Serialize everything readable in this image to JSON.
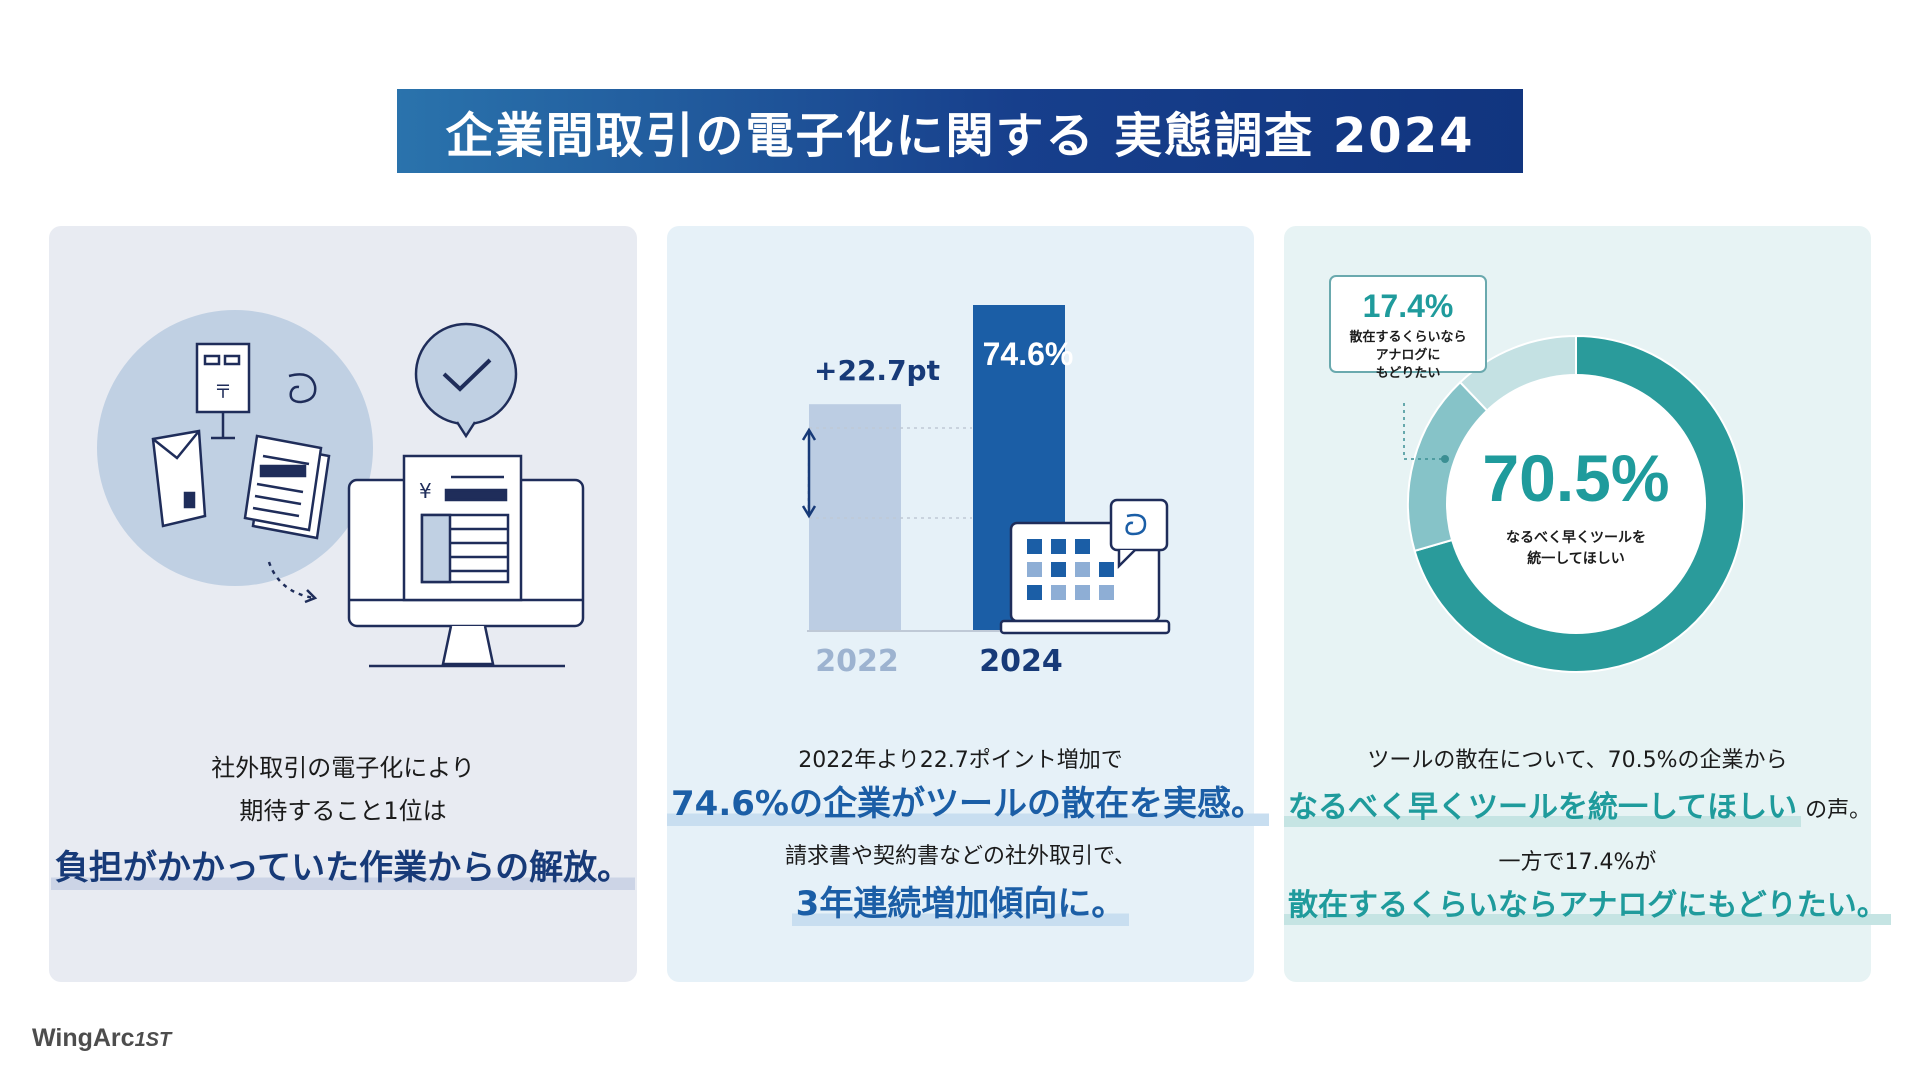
{
  "title": "企業間取引の電子化に関する 実態調査 2024",
  "panel1": {
    "line1": "社外取引の電子化により",
    "line2": "期待すること1位は",
    "highlight": "負担がかかっていた作業からの解放。"
  },
  "panel2": {
    "chart_data": {
      "type": "bar",
      "categories": [
        "2022",
        "2024"
      ],
      "values": [
        51.9,
        74.6
      ],
      "unit": "%",
      "colors": [
        "#bccde3",
        "#1b5ea6"
      ],
      "annotation": "+22.7pt",
      "value_label": "74.6%"
    },
    "line1": "2022年より22.7ポイント増加で",
    "highlight1": "74.6%の企業がツールの散在を実感。",
    "line2": "請求書や契約書などの社外取引で、",
    "highlight2": "3年連続増加傾向に。"
  },
  "panel3": {
    "chart_data": {
      "type": "pie",
      "slices": [
        {
          "label": "なるべく早くツールを統一してほしい",
          "value": 70.5,
          "color": "#2a9b9b"
        },
        {
          "label": "散在するくらいならアナログにもどりたい",
          "value": 17.4,
          "color": "#86c3c8"
        },
        {
          "label": "",
          "value": 12.1,
          "color": "#c4e1e3"
        }
      ]
    },
    "callout_value": "17.4%",
    "callout_l1": "散在するくらいなら",
    "callout_l2": "アナログに",
    "callout_l3": "もどりたい",
    "center_value": "70.5%",
    "center_l1": "なるべく早くツールを",
    "center_l2": "統一してほしい",
    "line1": "ツールの散在について、70.5%の企業から",
    "highlight1": "なるべく早くツールを統一してほしい",
    "line1_suffix": "の声。",
    "line2": "一方で17.4%が",
    "highlight2": "散在するくらいならアナログにもどりたい。"
  },
  "logo": {
    "text": "WingArc",
    "suffix": "1ST"
  },
  "colors": {
    "navy": "#173a78",
    "blue": "#1b5ea6",
    "teal": "#1f9b9c"
  }
}
